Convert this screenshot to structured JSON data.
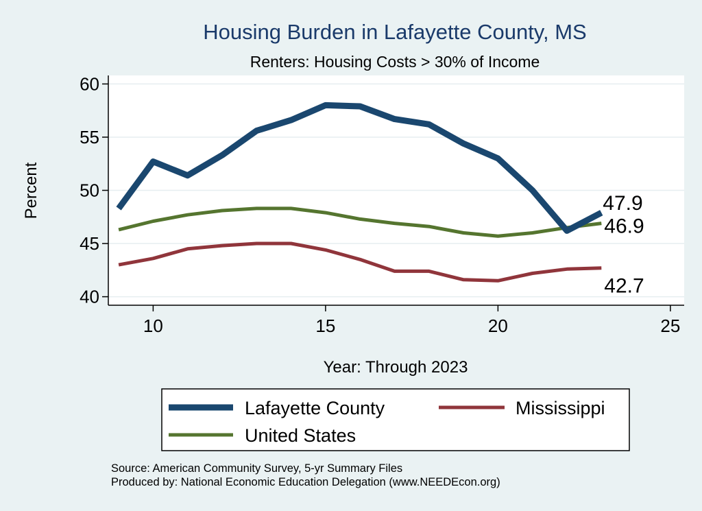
{
  "chart_data": {
    "type": "line",
    "title": "Housing Burden in Lafayette County, MS",
    "subtitle": "Renters: Housing Costs > 30% of Income",
    "xlabel": "Year: Through 2023",
    "ylabel": "Percent",
    "xlim": [
      8.7,
      25.4
    ],
    "ylim": [
      39.2,
      60.8
    ],
    "xticks": [
      10,
      15,
      20,
      25
    ],
    "yticks": [
      40,
      45,
      50,
      55,
      60
    ],
    "grid": true,
    "x": [
      9,
      10,
      11,
      12,
      13,
      14,
      15,
      16,
      17,
      18,
      19,
      20,
      21,
      22,
      23
    ],
    "series": [
      {
        "name": "Lafayette County",
        "color": "#1a476f",
        "values": [
          48.3,
          52.7,
          51.4,
          53.3,
          55.6,
          56.6,
          58.0,
          57.9,
          56.7,
          56.2,
          54.4,
          53.0,
          50.0,
          46.2,
          47.9
        ],
        "end_label": "47.9"
      },
      {
        "name": "Mississippi",
        "color": "#90353b",
        "values": [
          43.0,
          43.6,
          44.5,
          44.8,
          45.0,
          45.0,
          44.4,
          43.5,
          42.4,
          42.4,
          41.6,
          41.5,
          42.2,
          42.6,
          42.7
        ],
        "end_label": "42.7"
      },
      {
        "name": "United States",
        "color": "#55752f",
        "values": [
          46.3,
          47.1,
          47.7,
          48.1,
          48.3,
          48.3,
          47.9,
          47.3,
          46.9,
          46.6,
          46.0,
          45.7,
          46.0,
          46.5,
          46.9
        ],
        "end_label": "46.9"
      }
    ],
    "legend_position": "bottom",
    "source": "Source: American Community Survey, 5-yr Summary Files",
    "producer": "Produced by: National Economic Education Delegation (www.NEEDEcon.org)"
  }
}
